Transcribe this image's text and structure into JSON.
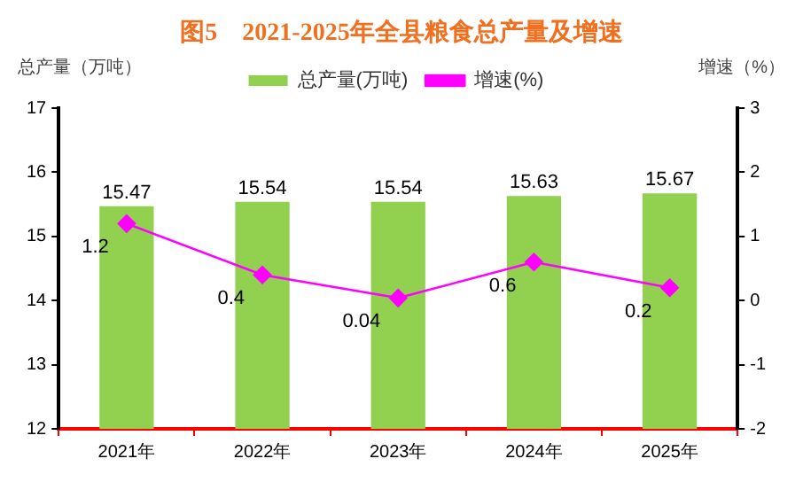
{
  "chart_data": {
    "type": "bar",
    "title": "图5　2021-2025年全县粮食总产量及增速",
    "ylabel": "总产量（万吨）",
    "y2label": "增速（%）",
    "categories": [
      "2021年",
      "2022年",
      "2023年",
      "2024年",
      "2025年"
    ],
    "series": [
      {
        "name": "总产量(万吨)",
        "color": "#92d050",
        "values": [
          15.47,
          15.54,
          15.54,
          15.63,
          15.67
        ]
      },
      {
        "name": "增速(%)",
        "type": "line",
        "axis": "y2",
        "color": "#ff00ff",
        "marker": "diamond",
        "values": [
          1.2,
          0.4,
          0.04,
          0.6,
          0.2
        ]
      }
    ],
    "ylim": [
      12,
      17
    ],
    "yticks": [
      12,
      13,
      14,
      15,
      16,
      17
    ],
    "y2lim": [
      -2,
      3
    ],
    "y2ticks": [
      -2,
      -1,
      0,
      1,
      2,
      3
    ],
    "grid": false,
    "legend": "top",
    "data_labels": true
  }
}
